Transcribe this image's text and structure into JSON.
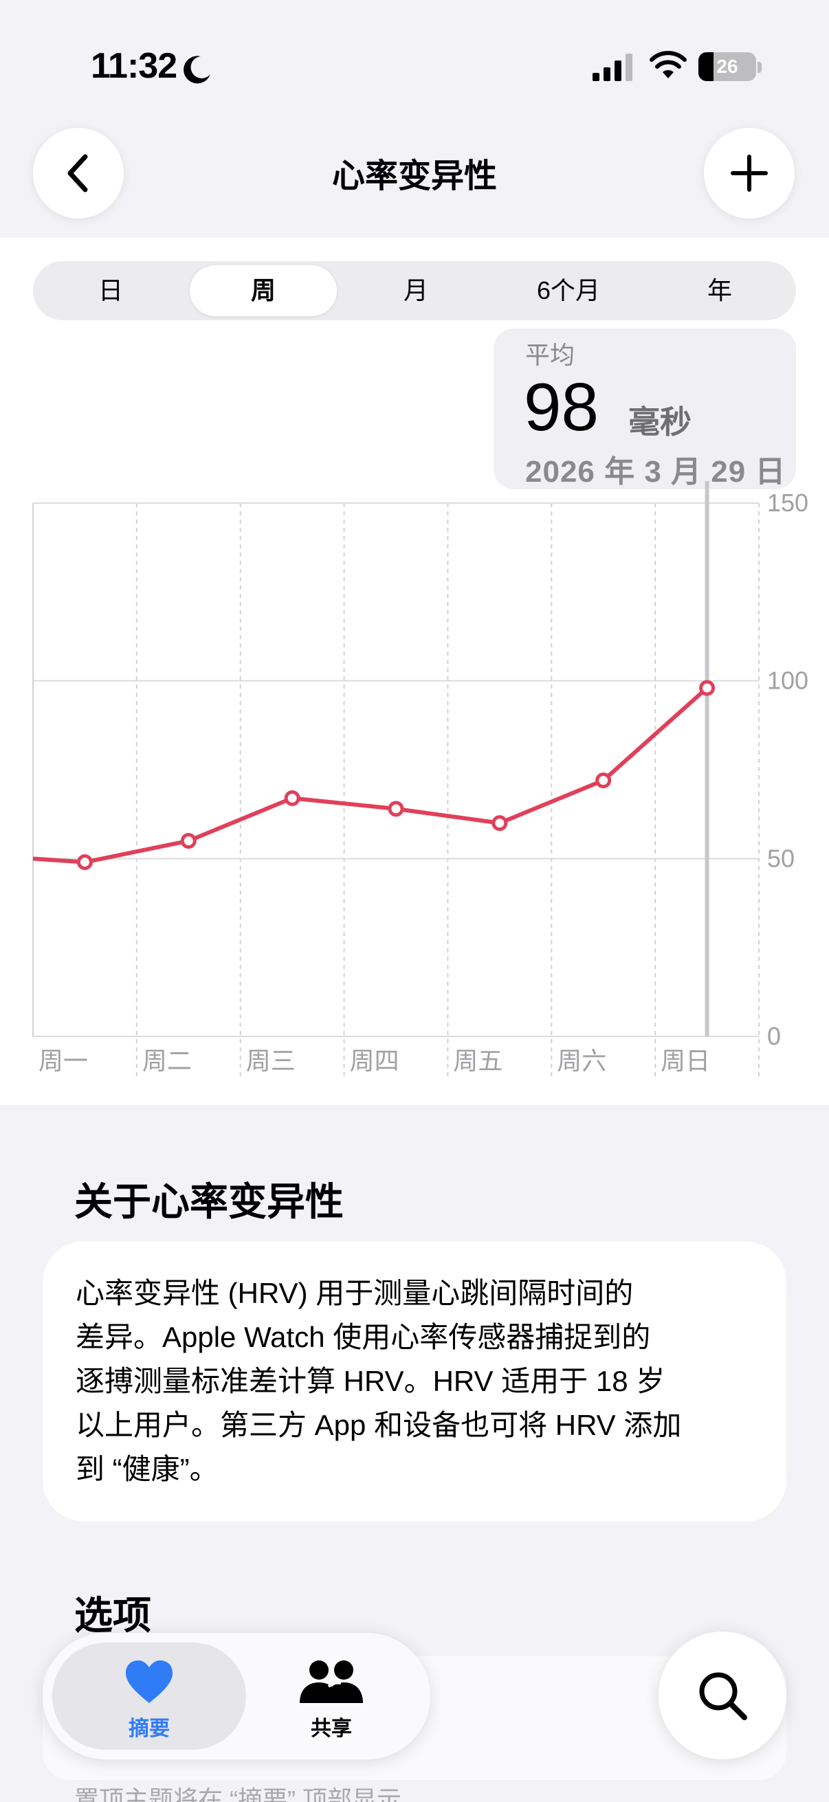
{
  "status_bar": {
    "time": "11:32",
    "battery_level": "26",
    "icons": [
      "moon-icon",
      "signal-icon",
      "wifi-icon",
      "battery-icon"
    ]
  },
  "header": {
    "title": "心率变异性",
    "back_icon": "chevron-left-icon",
    "add_icon": "plus-icon"
  },
  "range_tabs": [
    {
      "label": "日",
      "selected": false
    },
    {
      "label": "周",
      "selected": true
    },
    {
      "label": "月",
      "selected": false
    },
    {
      "label": "6个月",
      "selected": false
    },
    {
      "label": "年",
      "selected": false
    }
  ],
  "summary": {
    "label": "平均",
    "value": "98",
    "unit": "毫秒",
    "date": "2026 年 3 月 29 日"
  },
  "chart_data": {
    "type": "line",
    "categories": [
      "周一",
      "周二",
      "周三",
      "周四",
      "周五",
      "周六",
      "周日"
    ],
    "series": [
      {
        "values": [
          49,
          55,
          67,
          64,
          60,
          72,
          98
        ],
        "color": "#e0405a"
      }
    ],
    "leading_value": 50,
    "ylim": [
      0,
      150
    ],
    "yticks": [
      "0",
      "50",
      "100",
      "150"
    ],
    "selected_category": "周日",
    "grid": true,
    "y_axis_position": "right"
  },
  "about": {
    "title": "关于心率变异性",
    "lines": [
      "心率变异性 (HRV) 用于测量心跳间隔时间的",
      "差异。Apple Watch 使用心率传感器捕捉到的",
      "逐搏测量标准差计算 HRV。HRV 适用于 18 岁",
      "以上用户。第三方 App 和设备也可将 HRV 添加",
      "到 “健康”。"
    ]
  },
  "options": {
    "title": "选项",
    "footnote": "置顶主题将在 “摘要” 顶部显示。"
  },
  "tab_bar": {
    "summary_label": "摘要",
    "summary_icon": "heart-icon",
    "sharing_label": "共享",
    "sharing_icon": "people-icon",
    "search_icon": "search-icon",
    "accent": "#2f7cf6"
  }
}
